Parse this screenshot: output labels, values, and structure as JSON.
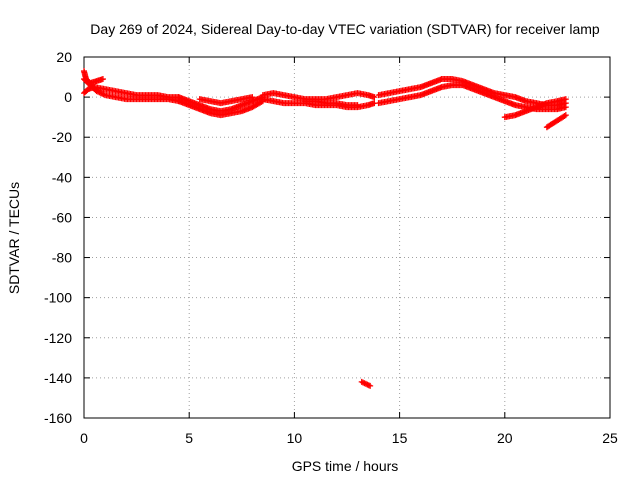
{
  "chart_data": {
    "type": "scatter",
    "title": "Day 269 of 2024, Sidereal Day-to-day VTEC variation (SDTVAR) for receiver lamp",
    "xlabel": "GPS time / hours",
    "ylabel": "SDTVAR / TECUs",
    "xlim": [
      0,
      25
    ],
    "ylim": [
      -160,
      20
    ],
    "xticks": [
      "0",
      "5",
      "10",
      "15",
      "20",
      "25"
    ],
    "yticks": [
      "20",
      "0",
      "-20",
      "-40",
      "-60",
      "-80",
      "-100",
      "-120",
      "-140",
      "-160"
    ],
    "grid": true,
    "marker": "plus",
    "series": [
      {
        "name": "SDTVAR",
        "color": "#ff0000",
        "segments": [
          {
            "x": [
              0.0,
              0.2,
              0.5,
              1.0,
              1.5,
              2.0,
              2.5,
              3.0,
              3.5,
              4.0,
              4.5
            ],
            "y": [
              2,
              4,
              5,
              4,
              3,
              2,
              1,
              1,
              1,
              0,
              0
            ]
          },
          {
            "x": [
              0.0,
              0.3,
              0.6,
              1.0,
              1.5,
              2.0,
              2.5,
              3.0,
              3.5,
              4.0,
              4.5
            ],
            "y": [
              9,
              6,
              3,
              1,
              0,
              -1,
              -1,
              -1,
              -1,
              -1,
              -2
            ]
          },
          {
            "x": [
              0.0,
              0.1,
              0.3,
              0.6,
              0.9
            ],
            "y": [
              13,
              9,
              7,
              8,
              9
            ]
          },
          {
            "x": [
              4.5,
              5.0,
              5.5,
              6.0,
              6.5,
              7.0,
              7.5,
              8.0,
              8.5
            ],
            "y": [
              0,
              -2,
              -4,
              -6,
              -7,
              -6,
              -4,
              -2,
              0
            ]
          },
          {
            "x": [
              4.5,
              5.0,
              5.5,
              6.0,
              6.5,
              7.0,
              7.5,
              8.0,
              8.5
            ],
            "y": [
              -2,
              -4,
              -6,
              -8,
              -9,
              -8,
              -7,
              -5,
              -2
            ]
          },
          {
            "x": [
              5.5,
              6.0,
              6.5,
              7.0,
              7.5,
              8.0
            ],
            "y": [
              -1,
              -2,
              -3,
              -2,
              -1,
              0
            ]
          },
          {
            "x": [
              8.5,
              9.0,
              9.5,
              10.0,
              10.5,
              11.0,
              11.5,
              12.0,
              12.5,
              13.0,
              13.5,
              13.8
            ],
            "y": [
              1,
              2,
              1,
              0,
              -1,
              -1,
              -1,
              0,
              1,
              2,
              1,
              0
            ]
          },
          {
            "x": [
              8.5,
              9.0,
              9.5,
              10.0,
              10.5,
              11.0,
              11.5,
              12.0,
              12.5,
              13.0,
              13.5,
              13.8
            ],
            "y": [
              -1,
              -2,
              -3,
              -3,
              -3,
              -4,
              -4,
              -4,
              -5,
              -5,
              -4,
              -3
            ]
          },
          {
            "x": [
              10.5,
              11.0,
              11.5,
              12.0,
              12.5,
              13.0
            ],
            "y": [
              -2,
              -2,
              -3,
              -3,
              -4,
              -4
            ]
          },
          {
            "x": [
              14.0,
              14.5,
              15.0,
              15.5,
              16.0,
              16.5,
              17.0,
              17.5,
              18.0,
              18.5,
              19.0,
              19.5,
              20.0,
              20.5,
              21.0,
              21.5,
              22.0,
              22.5,
              22.9
            ],
            "y": [
              1,
              2,
              3,
              4,
              5,
              7,
              9,
              9,
              8,
              6,
              4,
              2,
              1,
              0,
              -2,
              -3,
              -4,
              -4,
              -3
            ]
          },
          {
            "x": [
              14.0,
              14.5,
              15.0,
              15.5,
              16.0,
              16.5,
              17.0,
              17.5,
              18.0,
              18.5,
              19.0,
              19.5,
              20.0,
              20.5,
              21.0,
              21.5,
              22.0,
              22.5,
              22.9
            ],
            "y": [
              -3,
              -2,
              -1,
              0,
              1,
              3,
              5,
              6,
              6,
              4,
              2,
              0,
              -2,
              -4,
              -5,
              -6,
              -6,
              -6,
              -5
            ]
          },
          {
            "x": [
              20.0,
              20.5,
              21.0,
              21.5,
              22.0,
              22.5,
              22.9
            ],
            "y": [
              -10,
              -9,
              -7,
              -5,
              -3,
              -2,
              -1
            ]
          },
          {
            "x": [
              22.0,
              22.3,
              22.6,
              22.9
            ],
            "y": [
              -15,
              -13,
              -11,
              -9
            ]
          },
          {
            "x": [
              13.2,
              13.4,
              13.6
            ],
            "y": [
              -142,
              -143,
              -144
            ]
          }
        ]
      }
    ]
  }
}
